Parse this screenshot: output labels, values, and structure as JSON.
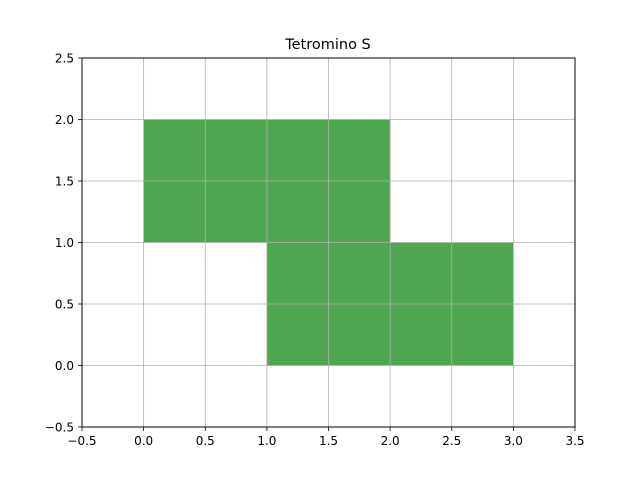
{
  "chart_data": {
    "type": "area",
    "title": "Tetromino S",
    "xlabel": "",
    "ylabel": "",
    "xlim": [
      -0.5,
      3.5
    ],
    "ylim": [
      -0.5,
      2.5
    ],
    "xticks": [
      -0.5,
      0.0,
      0.5,
      1.0,
      1.5,
      2.0,
      2.5,
      3.0,
      3.5
    ],
    "yticks": [
      -0.5,
      0.0,
      0.5,
      1.0,
      1.5,
      2.0,
      2.5
    ],
    "xtick_labels": [
      "−0.5",
      "0.0",
      "0.5",
      "1.0",
      "1.5",
      "2.0",
      "2.5",
      "3.0",
      "3.5"
    ],
    "ytick_labels": [
      "−0.5",
      "0.0",
      "0.5",
      "1.0",
      "1.5",
      "2.0",
      "2.5"
    ],
    "grid": true,
    "fill_color": "#4ea64e",
    "grid_color": "#b0b0b0",
    "cells": [
      {
        "x": 0,
        "y": 1
      },
      {
        "x": 1,
        "y": 1
      },
      {
        "x": 1,
        "y": 0
      },
      {
        "x": 2,
        "y": 0
      }
    ]
  }
}
